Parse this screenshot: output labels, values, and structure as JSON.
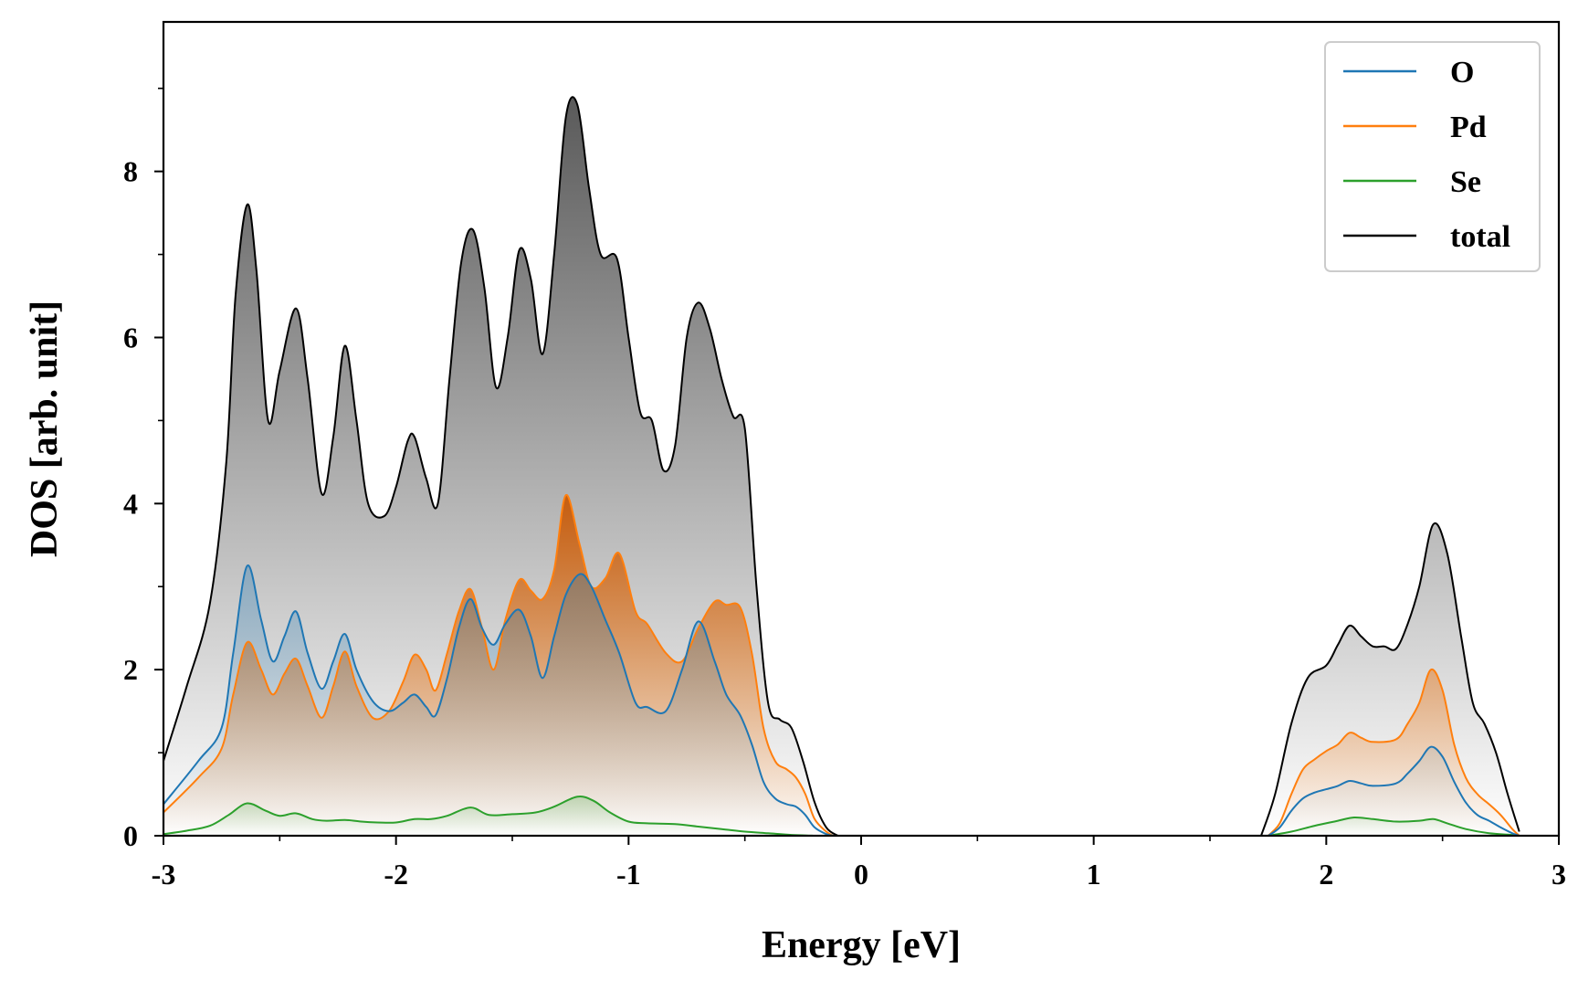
{
  "chart_data": {
    "type": "area",
    "xlabel": "Energy [eV]",
    "ylabel": "DOS [arb. unit]",
    "xlim": [
      -3,
      3
    ],
    "ylim": [
      0,
      9.8
    ],
    "xticks": [
      -3,
      -2,
      -1,
      0,
      1,
      2,
      3
    ],
    "xtick_labels": [
      "-3",
      "-2",
      "-1",
      "0",
      "1",
      "2",
      "3"
    ],
    "yticks": [
      0,
      2,
      4,
      6,
      8
    ],
    "ytick_labels": [
      "0",
      "2",
      "4",
      "6",
      "8"
    ],
    "grid": false,
    "legend_position": "top-right",
    "series": [
      {
        "name": "O",
        "color": "#1f77b4",
        "x": [
          -3.0,
          -2.85,
          -2.75,
          -2.7,
          -2.64,
          -2.58,
          -2.53,
          -2.48,
          -2.43,
          -2.38,
          -2.32,
          -2.27,
          -2.22,
          -2.17,
          -2.1,
          -2.03,
          -1.97,
          -1.92,
          -1.87,
          -1.83,
          -1.78,
          -1.73,
          -1.68,
          -1.63,
          -1.58,
          -1.53,
          -1.47,
          -1.42,
          -1.37,
          -1.32,
          -1.27,
          -1.21,
          -1.16,
          -1.1,
          -1.04,
          -0.97,
          -0.92,
          -0.84,
          -0.77,
          -0.7,
          -0.63,
          -0.58,
          -0.52,
          -0.47,
          -0.42,
          -0.37,
          -0.32,
          -0.28,
          -0.24,
          -0.2,
          -0.15,
          -0.12,
          1.75,
          1.8,
          1.85,
          1.9,
          1.95,
          2.0,
          2.05,
          2.1,
          2.15,
          2.2,
          2.3,
          2.35,
          2.4,
          2.45,
          2.5,
          2.55,
          2.6,
          2.65,
          2.7,
          2.75,
          2.8,
          2.83
        ],
        "values": [
          0.38,
          0.9,
          1.3,
          2.2,
          3.25,
          2.6,
          2.1,
          2.4,
          2.7,
          2.2,
          1.77,
          2.1,
          2.43,
          2.0,
          1.62,
          1.5,
          1.6,
          1.7,
          1.55,
          1.45,
          1.9,
          2.5,
          2.85,
          2.5,
          2.3,
          2.55,
          2.72,
          2.4,
          1.9,
          2.4,
          2.9,
          3.15,
          3.0,
          2.6,
          2.2,
          1.6,
          1.55,
          1.5,
          2.0,
          2.58,
          2.1,
          1.7,
          1.45,
          1.1,
          0.65,
          0.45,
          0.38,
          0.35,
          0.25,
          0.1,
          0.02,
          0.0,
          0.0,
          0.1,
          0.3,
          0.45,
          0.52,
          0.56,
          0.6,
          0.66,
          0.63,
          0.6,
          0.63,
          0.75,
          0.9,
          1.07,
          0.95,
          0.65,
          0.4,
          0.25,
          0.18,
          0.1,
          0.03,
          0.0
        ]
      },
      {
        "name": "Pd",
        "color": "#ff7f0e",
        "x": [
          -3.0,
          -2.85,
          -2.75,
          -2.7,
          -2.64,
          -2.58,
          -2.53,
          -2.48,
          -2.43,
          -2.38,
          -2.32,
          -2.27,
          -2.22,
          -2.17,
          -2.1,
          -2.03,
          -1.97,
          -1.92,
          -1.87,
          -1.83,
          -1.78,
          -1.73,
          -1.68,
          -1.63,
          -1.58,
          -1.53,
          -1.47,
          -1.42,
          -1.37,
          -1.32,
          -1.27,
          -1.21,
          -1.16,
          -1.1,
          -1.04,
          -0.97,
          -0.92,
          -0.84,
          -0.77,
          -0.7,
          -0.63,
          -0.58,
          -0.52,
          -0.47,
          -0.42,
          -0.37,
          -0.32,
          -0.28,
          -0.24,
          -0.2,
          -0.15,
          -0.12,
          1.75,
          1.8,
          1.85,
          1.9,
          1.95,
          2.0,
          2.05,
          2.1,
          2.15,
          2.2,
          2.3,
          2.35,
          2.4,
          2.45,
          2.5,
          2.55,
          2.6,
          2.65,
          2.7,
          2.75,
          2.8,
          2.83
        ],
        "values": [
          0.28,
          0.7,
          1.05,
          1.7,
          2.33,
          2.0,
          1.7,
          1.95,
          2.13,
          1.8,
          1.42,
          1.8,
          2.22,
          1.8,
          1.42,
          1.5,
          1.85,
          2.18,
          2.0,
          1.75,
          2.2,
          2.7,
          2.97,
          2.5,
          2.0,
          2.6,
          3.08,
          2.95,
          2.85,
          3.2,
          4.1,
          3.5,
          3.0,
          3.1,
          3.4,
          2.7,
          2.55,
          2.2,
          2.1,
          2.5,
          2.82,
          2.78,
          2.75,
          2.2,
          1.3,
          0.9,
          0.8,
          0.7,
          0.5,
          0.2,
          0.05,
          0.0,
          0.0,
          0.15,
          0.5,
          0.8,
          0.92,
          1.02,
          1.1,
          1.24,
          1.18,
          1.13,
          1.16,
          1.35,
          1.6,
          2.0,
          1.75,
          1.1,
          0.7,
          0.5,
          0.38,
          0.25,
          0.08,
          0.0
        ]
      },
      {
        "name": "Se",
        "color": "#2ca02c",
        "x": [
          -3.0,
          -2.9,
          -2.8,
          -2.72,
          -2.64,
          -2.56,
          -2.5,
          -2.43,
          -2.36,
          -2.3,
          -2.22,
          -2.15,
          -2.08,
          -2.0,
          -1.92,
          -1.85,
          -1.78,
          -1.68,
          -1.6,
          -1.5,
          -1.4,
          -1.32,
          -1.22,
          -1.15,
          -1.08,
          -1.0,
          -0.92,
          -0.8,
          -0.7,
          -0.6,
          -0.5,
          -0.4,
          -0.3,
          -0.2,
          -0.12,
          1.75,
          1.85,
          1.95,
          2.05,
          2.12,
          2.2,
          2.3,
          2.4,
          2.46,
          2.52,
          2.6,
          2.7,
          2.8,
          2.83
        ],
        "values": [
          0.02,
          0.06,
          0.12,
          0.25,
          0.39,
          0.3,
          0.24,
          0.27,
          0.2,
          0.18,
          0.19,
          0.17,
          0.16,
          0.16,
          0.2,
          0.2,
          0.24,
          0.34,
          0.25,
          0.26,
          0.28,
          0.35,
          0.47,
          0.42,
          0.28,
          0.17,
          0.15,
          0.14,
          0.11,
          0.08,
          0.05,
          0.03,
          0.01,
          0.0,
          0.0,
          0.0,
          0.05,
          0.12,
          0.18,
          0.22,
          0.2,
          0.17,
          0.18,
          0.2,
          0.15,
          0.08,
          0.03,
          0.01,
          0.0
        ]
      },
      {
        "name": "total",
        "color": "#000000",
        "x": [
          -3.0,
          -2.9,
          -2.8,
          -2.73,
          -2.69,
          -2.64,
          -2.6,
          -2.55,
          -2.5,
          -2.43,
          -2.38,
          -2.32,
          -2.27,
          -2.22,
          -2.17,
          -2.12,
          -2.05,
          -2.0,
          -1.95,
          -1.92,
          -1.87,
          -1.82,
          -1.77,
          -1.72,
          -1.67,
          -1.62,
          -1.57,
          -1.52,
          -1.47,
          -1.42,
          -1.37,
          -1.32,
          -1.27,
          -1.22,
          -1.17,
          -1.12,
          -1.05,
          -1.0,
          -0.95,
          -0.9,
          -0.85,
          -0.8,
          -0.75,
          -0.7,
          -0.65,
          -0.6,
          -0.55,
          -0.5,
          -0.45,
          -0.4,
          -0.35,
          -0.3,
          -0.25,
          -0.2,
          -0.15,
          -0.1,
          1.72,
          1.78,
          1.85,
          1.92,
          2.0,
          2.05,
          2.1,
          2.15,
          2.2,
          2.25,
          2.3,
          2.35,
          2.4,
          2.46,
          2.52,
          2.58,
          2.63,
          2.68,
          2.73,
          2.78,
          2.83
        ],
        "values": [
          0.9,
          1.8,
          2.8,
          4.5,
          6.5,
          7.6,
          6.8,
          5.0,
          5.6,
          6.35,
          5.5,
          4.12,
          4.8,
          5.9,
          5.0,
          4.0,
          3.85,
          4.2,
          4.75,
          4.8,
          4.3,
          4.0,
          5.5,
          6.9,
          7.3,
          6.6,
          5.4,
          6.0,
          7.05,
          6.7,
          5.8,
          7.0,
          8.65,
          8.8,
          7.8,
          7.0,
          6.95,
          6.0,
          5.1,
          5.0,
          4.4,
          4.7,
          6.0,
          6.42,
          6.1,
          5.5,
          5.05,
          4.9,
          3.0,
          1.6,
          1.4,
          1.3,
          0.9,
          0.4,
          0.1,
          0.0,
          0.0,
          0.5,
          1.35,
          1.9,
          2.05,
          2.3,
          2.53,
          2.4,
          2.28,
          2.28,
          2.25,
          2.55,
          3.0,
          3.75,
          3.4,
          2.4,
          1.6,
          1.35,
          1.0,
          0.5,
          0.05
        ]
      }
    ]
  }
}
